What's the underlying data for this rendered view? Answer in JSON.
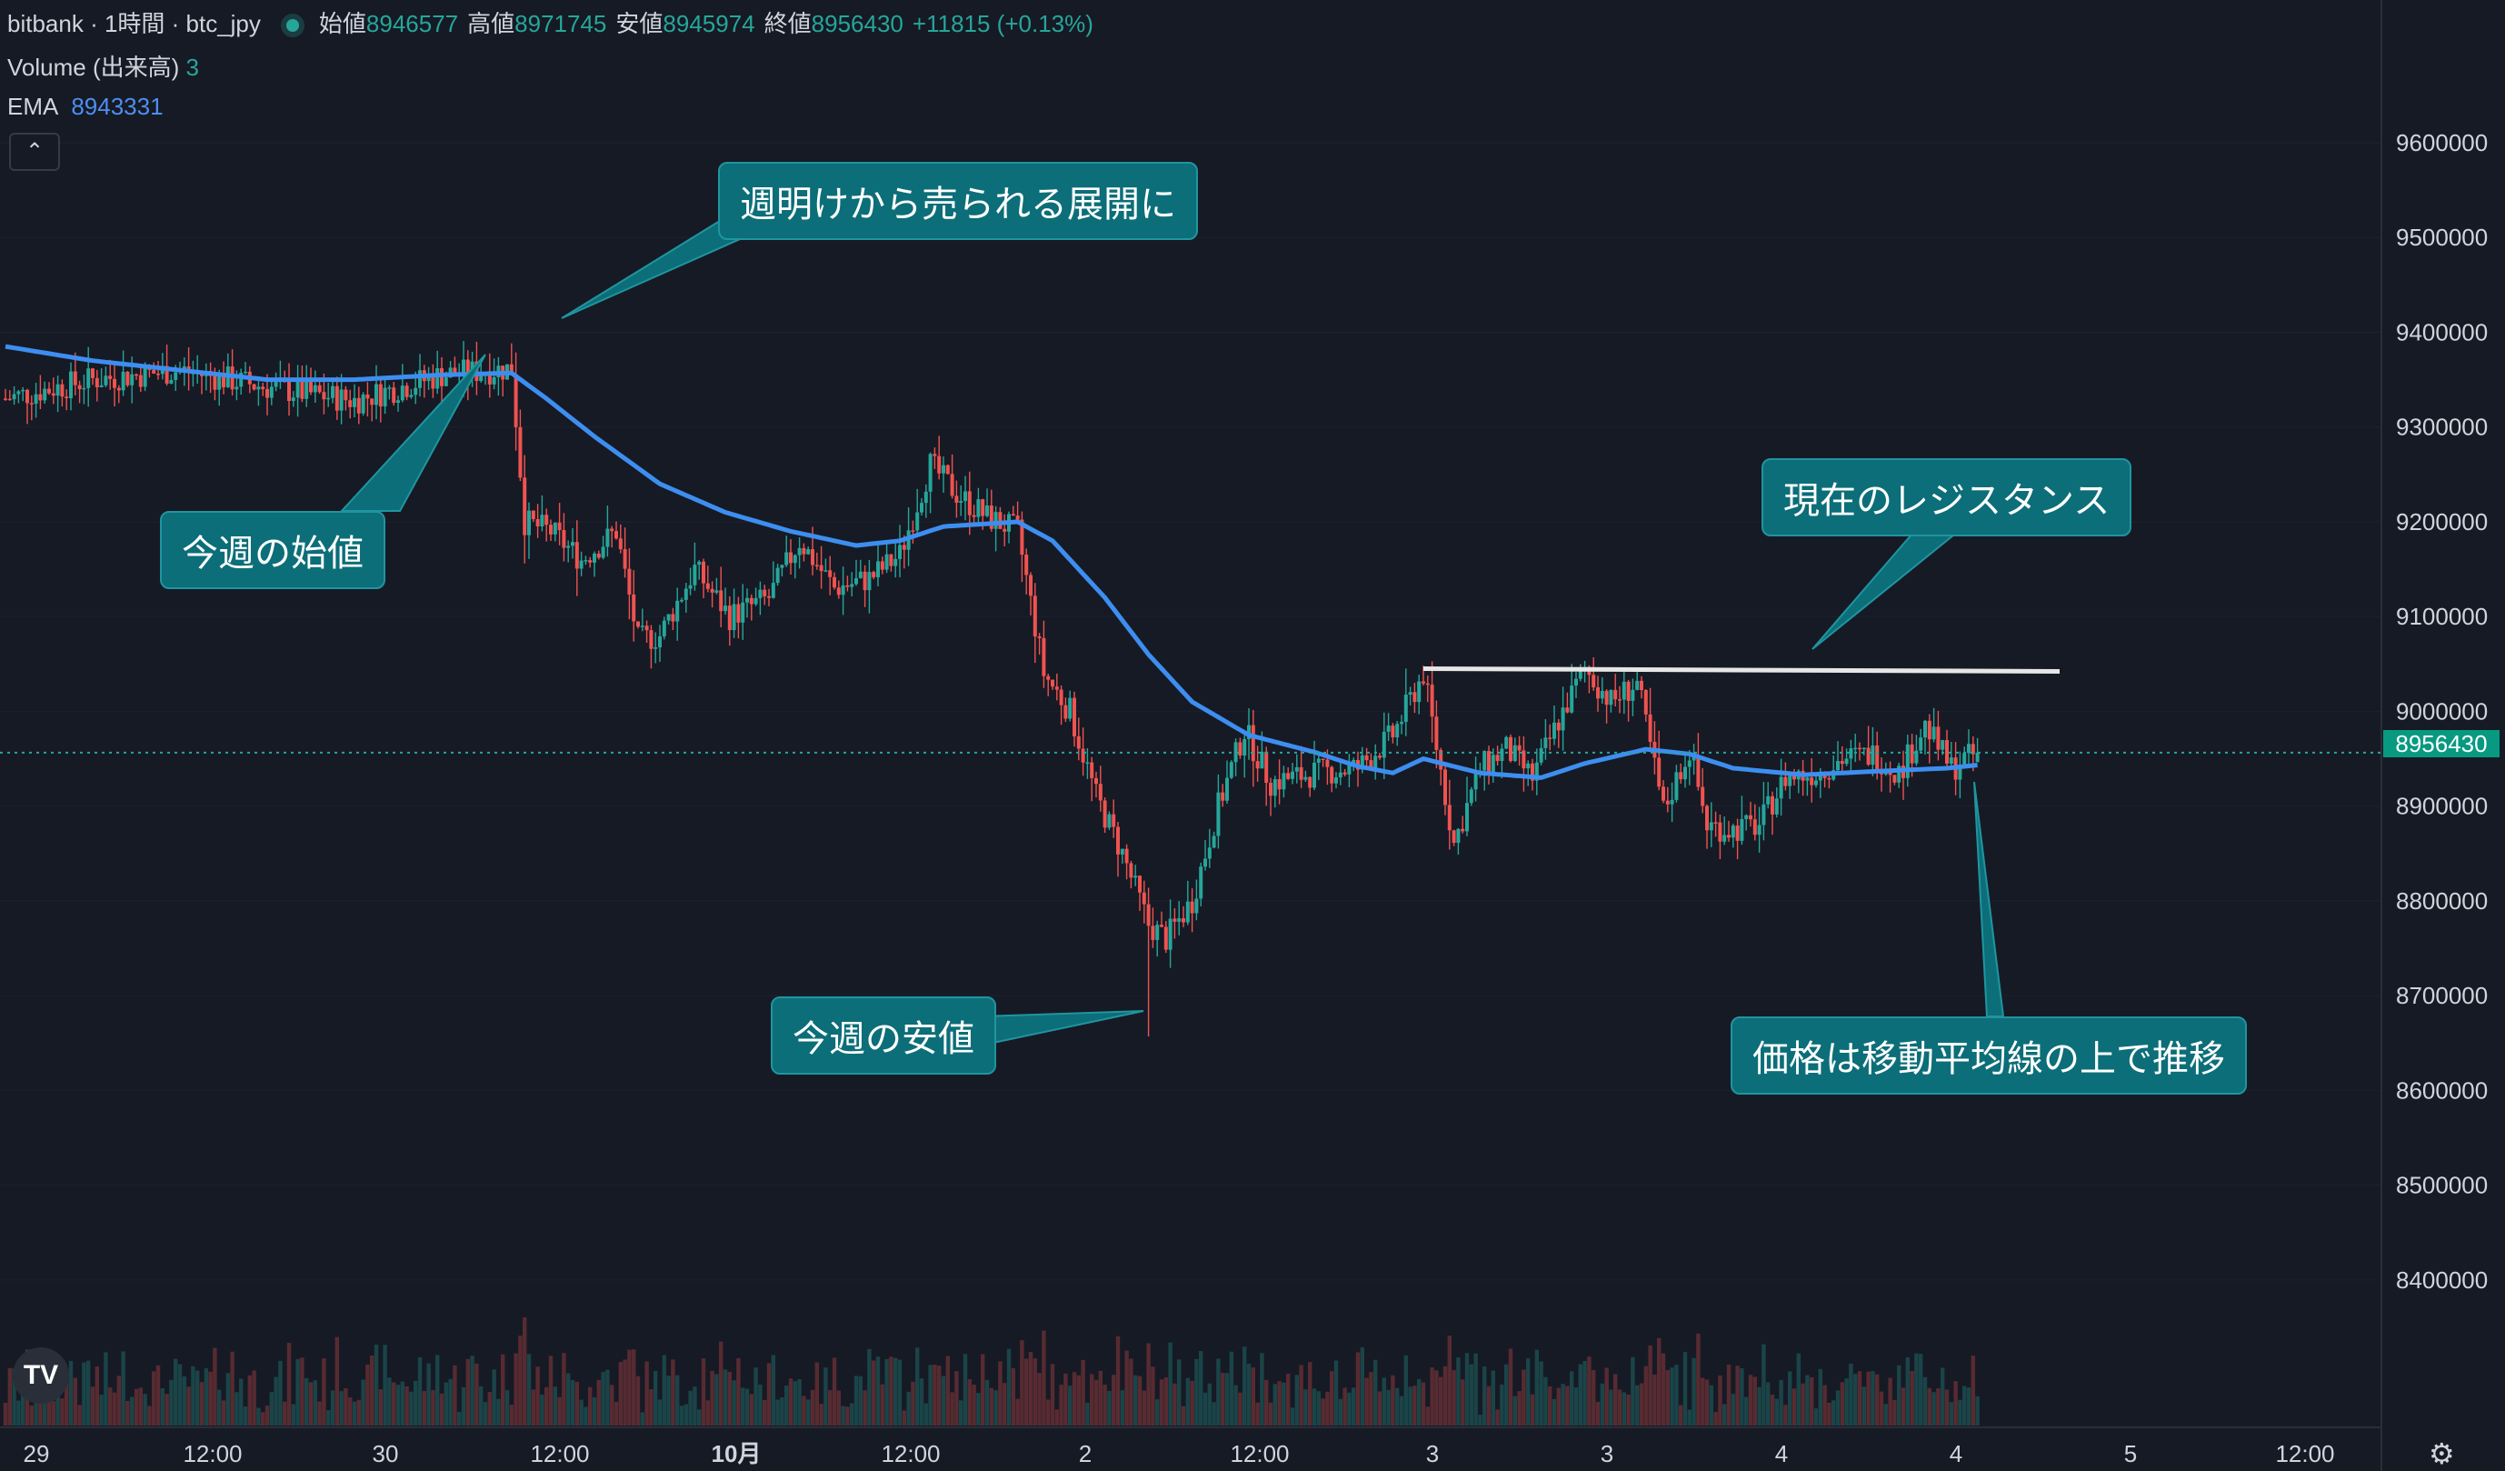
{
  "header": {
    "title": "bitbank · 1時間 · btc_jpy",
    "ohlc": [
      {
        "label": "始値",
        "value": "8946577"
      },
      {
        "label": "高値",
        "value": "8971745"
      },
      {
        "label": "安値",
        "value": "8945974"
      },
      {
        "label": "終値",
        "value": "8956430"
      }
    ],
    "change": "+11815 (+0.13%)",
    "volume_label": "Volume (出来高)",
    "volume_value": "3",
    "ema_label": "EMA",
    "ema_value": "8943331",
    "collapse_icon": "chevron-up-icon"
  },
  "callouts": {
    "sell_off": "週明けから売られる展開に",
    "week_open": "今週の始値",
    "week_low": "今週の安値",
    "resistance": "現在のレジスタンス",
    "above_ma": "価格は移動平均線の上で推移"
  },
  "current_price_tag": "8956430",
  "colors": {
    "up": "#26a69a",
    "down": "#ef5350",
    "ema": "#3d8ef0",
    "background": "#161a25",
    "callout": "#0c6e78"
  },
  "chart_data": {
    "type": "candlestick",
    "interval": "1時間",
    "symbol": "btc_jpy",
    "ylim": [
      8310000,
      9690000
    ],
    "yticks": [
      9600000,
      9500000,
      9400000,
      9300000,
      9200000,
      9100000,
      9000000,
      8900000,
      8800000,
      8700000,
      8600000,
      8500000,
      8400000
    ],
    "xticks": [
      "29",
      "12:00",
      "30",
      "12:00",
      "10月",
      "12:00",
      "2",
      "12:00",
      "3",
      "3",
      "4",
      "4",
      "5",
      "12:00"
    ],
    "xtick_bold": [
      "10月"
    ],
    "close_trajectory": [
      [
        0,
        9330000
      ],
      [
        20,
        9350000
      ],
      [
        40,
        9360000
      ],
      [
        60,
        9342000
      ],
      [
        80,
        9328000
      ],
      [
        100,
        9355000
      ],
      [
        116,
        9362000
      ],
      [
        119,
        9200000
      ],
      [
        125,
        9190000
      ],
      [
        132,
        9160000
      ],
      [
        140,
        9190000
      ],
      [
        145,
        9075000
      ],
      [
        150,
        9080000
      ],
      [
        158,
        9150000
      ],
      [
        166,
        9100000
      ],
      [
        175,
        9120000
      ],
      [
        182,
        9180000
      ],
      [
        190,
        9130000
      ],
      [
        198,
        9140000
      ],
      [
        205,
        9165000
      ],
      [
        212,
        9260000
      ],
      [
        218,
        9230000
      ],
      [
        225,
        9205000
      ],
      [
        232,
        9190000
      ],
      [
        238,
        9040000
      ],
      [
        244,
        9000000
      ],
      [
        250,
        8910000
      ],
      [
        256,
        8850000
      ],
      [
        262,
        8775000
      ],
      [
        266,
        8760000
      ],
      [
        272,
        8800000
      ],
      [
        278,
        8900000
      ],
      [
        284,
        8980000
      ],
      [
        290,
        8925000
      ],
      [
        300,
        8935000
      ],
      [
        310,
        8940000
      ],
      [
        318,
        8975000
      ],
      [
        325,
        9040000
      ],
      [
        332,
        8860000
      ],
      [
        338,
        8940000
      ],
      [
        344,
        8960000
      ],
      [
        350,
        8930000
      ],
      [
        356,
        8990000
      ],
      [
        362,
        9045000
      ],
      [
        368,
        9010000
      ],
      [
        374,
        9030000
      ],
      [
        380,
        8895000
      ],
      [
        386,
        8960000
      ],
      [
        390,
        8880000
      ],
      [
        396,
        8875000
      ],
      [
        402,
        8880000
      ],
      [
        408,
        8930000
      ],
      [
        415,
        8935000
      ],
      [
        421,
        8950000
      ],
      [
        428,
        8955000
      ],
      [
        434,
        8935000
      ],
      [
        440,
        8985000
      ],
      [
        446,
        8940000
      ],
      [
        452,
        8956430
      ]
    ],
    "ema_trajectory": [
      [
        0,
        9385000
      ],
      [
        20,
        9370000
      ],
      [
        40,
        9360000
      ],
      [
        60,
        9350000
      ],
      [
        80,
        9350000
      ],
      [
        100,
        9355000
      ],
      [
        116,
        9357000
      ],
      [
        124,
        9330000
      ],
      [
        135,
        9290000
      ],
      [
        150,
        9240000
      ],
      [
        165,
        9210000
      ],
      [
        180,
        9190000
      ],
      [
        195,
        9175000
      ],
      [
        205,
        9180000
      ],
      [
        215,
        9195000
      ],
      [
        232,
        9200000
      ],
      [
        240,
        9180000
      ],
      [
        252,
        9120000
      ],
      [
        262,
        9060000
      ],
      [
        272,
        9010000
      ],
      [
        285,
        8975000
      ],
      [
        300,
        8957000
      ],
      [
        310,
        8942000
      ],
      [
        318,
        8935000
      ],
      [
        325,
        8950000
      ],
      [
        338,
        8935000
      ],
      [
        352,
        8930000
      ],
      [
        362,
        8945000
      ],
      [
        376,
        8960000
      ],
      [
        386,
        8955000
      ],
      [
        396,
        8940000
      ],
      [
        412,
        8933000
      ],
      [
        430,
        8937000
      ],
      [
        445,
        8940000
      ],
      [
        452,
        8943331
      ]
    ],
    "week_open": 9355000,
    "week_low": 8657000,
    "resistance_level": 9045000,
    "last_price": 8956430,
    "latest_bar": {
      "open": 8946577,
      "high": 8971745,
      "low": 8945974,
      "close": 8956430,
      "volume": 3
    }
  }
}
